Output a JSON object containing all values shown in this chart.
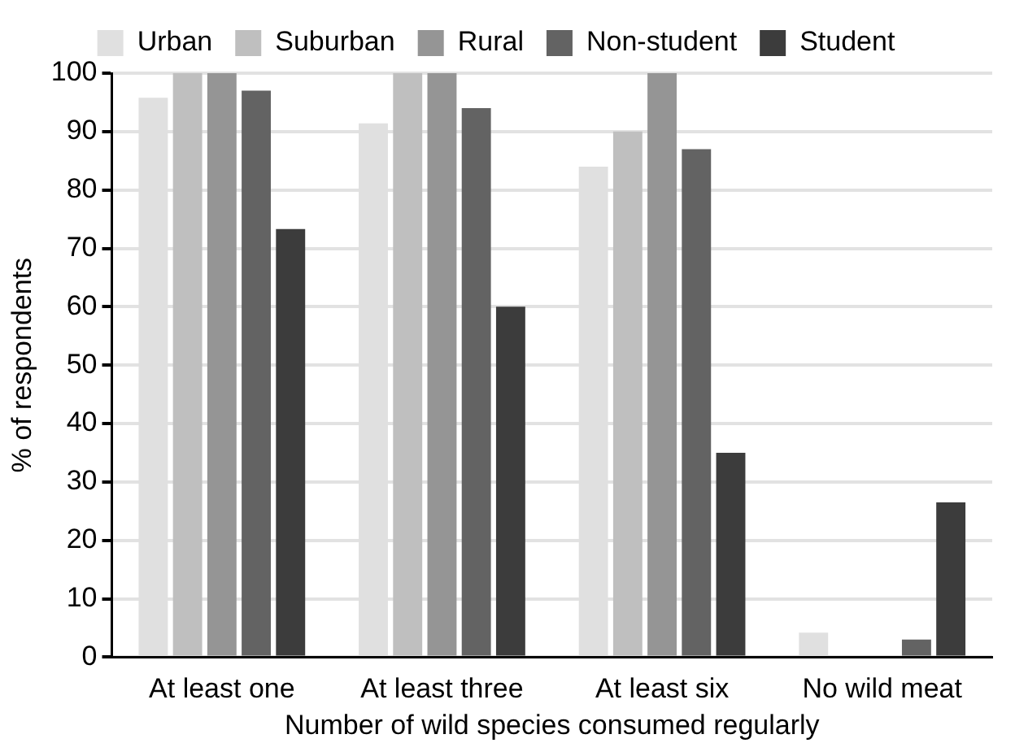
{
  "chart_data": {
    "type": "bar",
    "xlabel": "Number of wild species consumed regularly",
    "ylabel": "% of respondents",
    "categories": [
      "At least one",
      "At least three",
      "At least six",
      "No wild meat"
    ],
    "series": [
      {
        "name": "Urban",
        "color": "#e0e0e0",
        "values": [
          95.8,
          91.4,
          84,
          4.2
        ]
      },
      {
        "name": "Suburban",
        "color": "#bfbfbf",
        "values": [
          100,
          100,
          90,
          0
        ]
      },
      {
        "name": "Rural",
        "color": "#959595",
        "values": [
          100,
          100,
          100,
          0
        ]
      },
      {
        "name": "Non-student",
        "color": "#636363",
        "values": [
          97,
          94,
          87,
          3
        ]
      },
      {
        "name": "Student",
        "color": "#3c3c3c",
        "values": [
          73.3,
          60,
          35,
          26.5
        ]
      }
    ],
    "ylim": [
      0,
      100
    ],
    "yticks": [
      0,
      10,
      20,
      30,
      40,
      50,
      60,
      70,
      80,
      90,
      100
    ],
    "grid": "y",
    "legend": "top"
  }
}
